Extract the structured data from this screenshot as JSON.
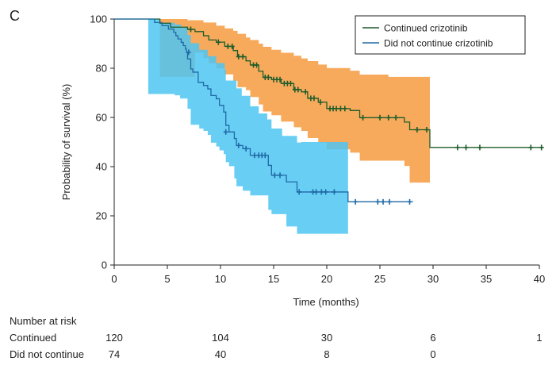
{
  "panel_label": "C",
  "chart_data": {
    "type": "line",
    "subtype": "kaplan-meier",
    "title": "",
    "xlabel": "Time (months)",
    "ylabel": "Probability of survival (%)",
    "xlim": [
      0,
      40
    ],
    "ylim": [
      0,
      100
    ],
    "xticks": [
      0,
      5,
      10,
      15,
      20,
      25,
      30,
      35,
      40
    ],
    "yticks": [
      0,
      20,
      40,
      60,
      80,
      100
    ],
    "legend_position": "top-right",
    "series": [
      {
        "name": "Continued crizotinib",
        "color": "#1f5c2a",
        "band_color": "#f6a14a",
        "steps": [
          [
            0,
            100
          ],
          [
            3.4,
            100
          ],
          [
            4.3,
            98.3
          ],
          [
            5.3,
            96.7
          ],
          [
            6.9,
            95.8
          ],
          [
            7.6,
            94.9
          ],
          [
            8.4,
            93.2
          ],
          [
            8.9,
            91.5
          ],
          [
            9.6,
            90.6
          ],
          [
            10.4,
            88.9
          ],
          [
            11.2,
            87.2
          ],
          [
            11.6,
            84.7
          ],
          [
            12.4,
            83
          ],
          [
            12.8,
            81.3
          ],
          [
            13.6,
            78.8
          ],
          [
            14,
            76.3
          ],
          [
            14.8,
            75.4
          ],
          [
            15.7,
            73.8
          ],
          [
            16.9,
            71.3
          ],
          [
            17.6,
            70.4
          ],
          [
            18.2,
            67.8
          ],
          [
            19.2,
            66.2
          ],
          [
            20,
            63.6
          ],
          [
            22.2,
            62.8
          ],
          [
            23.1,
            59.9
          ],
          [
            27.3,
            58.1
          ],
          [
            27.8,
            55
          ],
          [
            29.7,
            47.8
          ],
          [
            40.2,
            47.8
          ]
        ],
        "censors": [
          [
            7.2,
            95.8
          ],
          [
            9.8,
            90.6
          ],
          [
            10.7,
            88.9
          ],
          [
            11.1,
            88.9
          ],
          [
            11.7,
            84.7
          ],
          [
            12.1,
            84.7
          ],
          [
            13.1,
            81.3
          ],
          [
            13.4,
            81.3
          ],
          [
            14.2,
            76.3
          ],
          [
            14.5,
            76.3
          ],
          [
            15.0,
            75.4
          ],
          [
            15.3,
            75.4
          ],
          [
            15.6,
            75.4
          ],
          [
            16.0,
            73.8
          ],
          [
            16.3,
            73.8
          ],
          [
            16.6,
            73.8
          ],
          [
            17.0,
            71.3
          ],
          [
            17.3,
            71.3
          ],
          [
            18.0,
            70.4
          ],
          [
            18.5,
            67.8
          ],
          [
            18.8,
            67.8
          ],
          [
            19.4,
            66.2
          ],
          [
            20.3,
            63.6
          ],
          [
            20.6,
            63.6
          ],
          [
            20.9,
            63.6
          ],
          [
            21.3,
            63.6
          ],
          [
            21.7,
            63.6
          ],
          [
            23.4,
            59.9
          ],
          [
            25.0,
            59.9
          ],
          [
            25.8,
            59.9
          ],
          [
            26.5,
            59.9
          ],
          [
            28.5,
            55
          ],
          [
            29.4,
            55
          ],
          [
            32.3,
            47.8
          ],
          [
            33.1,
            47.8
          ],
          [
            34.4,
            47.8
          ],
          [
            39.2,
            47.8
          ],
          [
            40.2,
            47.8
          ]
        ],
        "ci_upper": [
          [
            0,
            100
          ],
          [
            3.4,
            100
          ],
          [
            4.3,
            100
          ],
          [
            6.9,
            99.5
          ],
          [
            8.4,
            98.6
          ],
          [
            9.6,
            97.3
          ],
          [
            10.4,
            96.2
          ],
          [
            11.2,
            95.2
          ],
          [
            11.6,
            94
          ],
          [
            12.4,
            92.5
          ],
          [
            12.8,
            91.5
          ],
          [
            13.6,
            90
          ],
          [
            14,
            88.7
          ],
          [
            14.8,
            87.5
          ],
          [
            15.7,
            86.3
          ],
          [
            16.9,
            85.1
          ],
          [
            17.6,
            84
          ],
          [
            18.2,
            82.9
          ],
          [
            19.2,
            81.5
          ],
          [
            20,
            80.1
          ],
          [
            22.2,
            79
          ],
          [
            23.1,
            77.4
          ],
          [
            25.8,
            76.5
          ],
          [
            29.7,
            76.5
          ]
        ],
        "ci_lower": [
          [
            0,
            100
          ],
          [
            3.4,
            100
          ],
          [
            4.3,
            76.5
          ],
          [
            6.9,
            76.5
          ],
          [
            7.6,
            86.3
          ],
          [
            8.4,
            84.2
          ],
          [
            8.9,
            82
          ],
          [
            9.6,
            79.9
          ],
          [
            10.4,
            77.5
          ],
          [
            11.2,
            74.9
          ],
          [
            11.6,
            72.3
          ],
          [
            12.4,
            71.1
          ],
          [
            12.8,
            68.3
          ],
          [
            13.6,
            65.3
          ],
          [
            14,
            62.4
          ],
          [
            14.8,
            60.9
          ],
          [
            15.7,
            58.3
          ],
          [
            16.9,
            56
          ],
          [
            17.6,
            54.5
          ],
          [
            18.2,
            51.6
          ],
          [
            19.2,
            49.8
          ],
          [
            20,
            47
          ],
          [
            22.2,
            45.7
          ],
          [
            23.1,
            42.4
          ],
          [
            27.3,
            40.3
          ],
          [
            27.8,
            33.5
          ],
          [
            29.7,
            33.5
          ]
        ]
      },
      {
        "name": "Did not continue crizotinib",
        "color": "#1f6aa6",
        "band_color": "#4dc6f2",
        "steps": [
          [
            0,
            100
          ],
          [
            3.5,
            100
          ],
          [
            3.8,
            98.6
          ],
          [
            4.5,
            97.3
          ],
          [
            5.1,
            95.9
          ],
          [
            5.6,
            94.6
          ],
          [
            5.8,
            93.2
          ],
          [
            6,
            91.9
          ],
          [
            6.3,
            90.5
          ],
          [
            6.5,
            89.2
          ],
          [
            6.7,
            87.8
          ],
          [
            6.8,
            86.5
          ],
          [
            6.9,
            83.8
          ],
          [
            7.2,
            79.7
          ],
          [
            7.4,
            78.4
          ],
          [
            7.9,
            74.3
          ],
          [
            8.4,
            73
          ],
          [
            8.8,
            71.6
          ],
          [
            9.1,
            68.9
          ],
          [
            9.6,
            67.6
          ],
          [
            9.9,
            64.9
          ],
          [
            10.3,
            62.2
          ],
          [
            10.5,
            56.8
          ],
          [
            10.8,
            54.1
          ],
          [
            11.3,
            51.4
          ],
          [
            11.5,
            48.6
          ],
          [
            12.1,
            47.3
          ],
          [
            12.8,
            44.6
          ],
          [
            14.5,
            40.5
          ],
          [
            14.8,
            36.5
          ],
          [
            16.2,
            33.8
          ],
          [
            17.2,
            29.7
          ],
          [
            22,
            25.7
          ],
          [
            28.1,
            25.7
          ]
        ],
        "censors": [
          [
            7.0,
            86.5
          ],
          [
            10.5,
            54.1
          ],
          [
            11.7,
            48.6
          ],
          [
            12.4,
            47.3
          ],
          [
            13.2,
            44.6
          ],
          [
            13.6,
            44.6
          ],
          [
            13.9,
            44.6
          ],
          [
            14.2,
            44.6
          ],
          [
            15.1,
            36.5
          ],
          [
            15.6,
            36.5
          ],
          [
            17.4,
            29.7
          ],
          [
            18.7,
            29.7
          ],
          [
            19.0,
            29.7
          ],
          [
            19.5,
            29.7
          ],
          [
            19.9,
            29.7
          ],
          [
            20.7,
            29.7
          ],
          [
            22.7,
            25.7
          ],
          [
            24.8,
            25.7
          ],
          [
            25.3,
            25.7
          ],
          [
            25.9,
            25.7
          ],
          [
            27.8,
            25.7
          ]
        ],
        "ci_upper": [
          [
            0,
            100
          ],
          [
            3.2,
            100
          ],
          [
            4.3,
            98.5
          ],
          [
            5.7,
            97.8
          ],
          [
            6.3,
            96.5
          ],
          [
            6.9,
            93.5
          ],
          [
            7.2,
            90.2
          ],
          [
            8,
            87.5
          ],
          [
            8.8,
            84.9
          ],
          [
            9.6,
            82.1
          ],
          [
            10.4,
            79.5
          ],
          [
            10.5,
            75
          ],
          [
            11.5,
            71.8
          ],
          [
            12,
            68.8
          ],
          [
            12.8,
            64.5
          ],
          [
            13.6,
            61.6
          ],
          [
            14.4,
            59.2
          ],
          [
            14.8,
            55.5
          ],
          [
            15.8,
            52.5
          ],
          [
            17.2,
            49.8
          ],
          [
            17.6,
            50
          ],
          [
            22,
            50
          ]
        ],
        "ci_lower": [
          [
            0,
            100
          ],
          [
            3.2,
            69.5
          ],
          [
            5.7,
            69
          ],
          [
            6.2,
            67.7
          ],
          [
            6.9,
            63.5
          ],
          [
            7.2,
            57
          ],
          [
            8,
            55.5
          ],
          [
            8.4,
            54.5
          ],
          [
            8.8,
            52.9
          ],
          [
            9.1,
            49.7
          ],
          [
            9.6,
            48.2
          ],
          [
            9.9,
            46.6
          ],
          [
            10.3,
            45.1
          ],
          [
            10.5,
            41.8
          ],
          [
            10.8,
            40.2
          ],
          [
            11.3,
            35.2
          ],
          [
            11.5,
            32
          ],
          [
            12.1,
            30.2
          ],
          [
            12.8,
            28.3
          ],
          [
            14.5,
            22.4
          ],
          [
            14.8,
            20.7
          ],
          [
            16.2,
            15.7
          ],
          [
            17.2,
            12.7
          ],
          [
            22,
            12.7
          ]
        ]
      }
    ]
  },
  "risk_table": {
    "title": "Number at risk",
    "times": [
      0,
      10,
      20,
      30,
      40
    ],
    "rows": [
      {
        "label": "Continued",
        "values": [
          "120",
          "104",
          "30",
          "6",
          "1"
        ]
      },
      {
        "label": "Did not continue",
        "values": [
          "74",
          "40",
          "8",
          "0",
          ""
        ]
      }
    ]
  }
}
